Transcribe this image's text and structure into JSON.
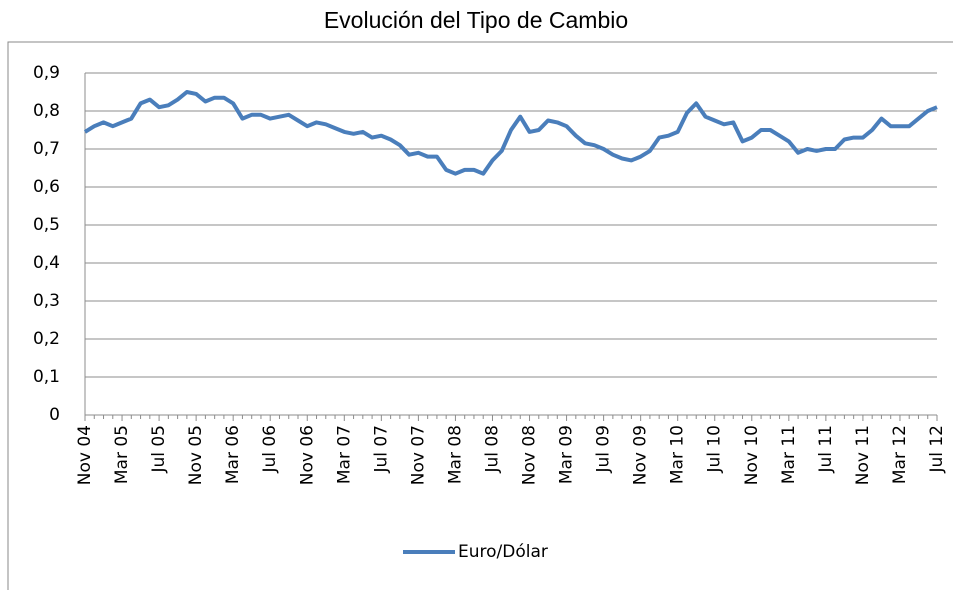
{
  "chart_data": {
    "type": "line",
    "title": "Evolución del Tipo de Cambio",
    "categories": [
      "Nov 04",
      null,
      null,
      null,
      "Mar 05",
      null,
      null,
      null,
      "Jul 05",
      null,
      null,
      null,
      "Nov 05",
      null,
      null,
      null,
      "Mar 06",
      null,
      null,
      null,
      "Jul 06",
      null,
      null,
      null,
      "Nov 06",
      null,
      null,
      null,
      "Mar 07",
      null,
      null,
      null,
      "Jul 07",
      null,
      null,
      null,
      "Nov 07",
      null,
      null,
      null,
      "Mar 08",
      null,
      null,
      null,
      "Jul 08",
      null,
      null,
      null,
      "Nov 08",
      null,
      null,
      null,
      "Mar 09",
      null,
      null,
      null,
      "Jul 09",
      null,
      null,
      null,
      "Nov 09",
      null,
      null,
      null,
      "Mar 10",
      null,
      null,
      null,
      "Jul 10",
      null,
      null,
      null,
      "Nov 10",
      null,
      null,
      null,
      "Mar 11",
      null,
      null,
      null,
      "Jul 11",
      null,
      null,
      null,
      "Nov 11",
      null,
      null,
      null,
      "Mar 12",
      null,
      null,
      null,
      "Jul 12"
    ],
    "series": [
      {
        "name": "Euro/Dólar",
        "color": "#4a7ebb",
        "values": [
          0.745,
          0.76,
          0.77,
          0.76,
          0.77,
          0.78,
          0.82,
          0.83,
          0.81,
          0.815,
          0.83,
          0.85,
          0.845,
          0.825,
          0.835,
          0.835,
          0.82,
          0.78,
          0.79,
          0.79,
          0.78,
          0.785,
          0.79,
          0.775,
          0.76,
          0.77,
          0.765,
          0.755,
          0.745,
          0.74,
          0.745,
          0.73,
          0.735,
          0.725,
          0.71,
          0.685,
          0.69,
          0.68,
          0.68,
          0.645,
          0.635,
          0.645,
          0.645,
          0.635,
          0.67,
          0.695,
          0.75,
          0.785,
          0.745,
          0.75,
          0.775,
          0.77,
          0.76,
          0.735,
          0.715,
          0.71,
          0.7,
          0.685,
          0.675,
          0.67,
          0.68,
          0.695,
          0.73,
          0.735,
          0.745,
          0.795,
          0.82,
          0.785,
          0.775,
          0.765,
          0.77,
          0.72,
          0.73,
          0.75,
          0.75,
          0.735,
          0.72,
          0.69,
          0.7,
          0.695,
          0.7,
          0.7,
          0.725,
          0.73,
          0.73,
          0.75,
          0.78,
          0.76,
          0.76,
          0.76,
          0.78,
          0.8,
          0.81
        ]
      }
    ],
    "ylim": [
      0,
      0.9
    ],
    "yticks": [
      0,
      {
        "value": 0.1,
        "label": "0,1"
      },
      {
        "value": 0.2,
        "label": "0,2"
      },
      {
        "value": 0.3,
        "label": "0,3"
      },
      {
        "value": 0.4,
        "label": "0,4"
      },
      {
        "value": 0.5,
        "label": "0,5"
      },
      {
        "value": 0.6,
        "label": "0,6"
      },
      {
        "value": 0.7,
        "label": "0,7"
      },
      {
        "value": 0.8,
        "label": "0,8"
      },
      {
        "value": 0.9,
        "label": "0,9"
      }
    ],
    "grid": true,
    "legend": "bottom"
  }
}
